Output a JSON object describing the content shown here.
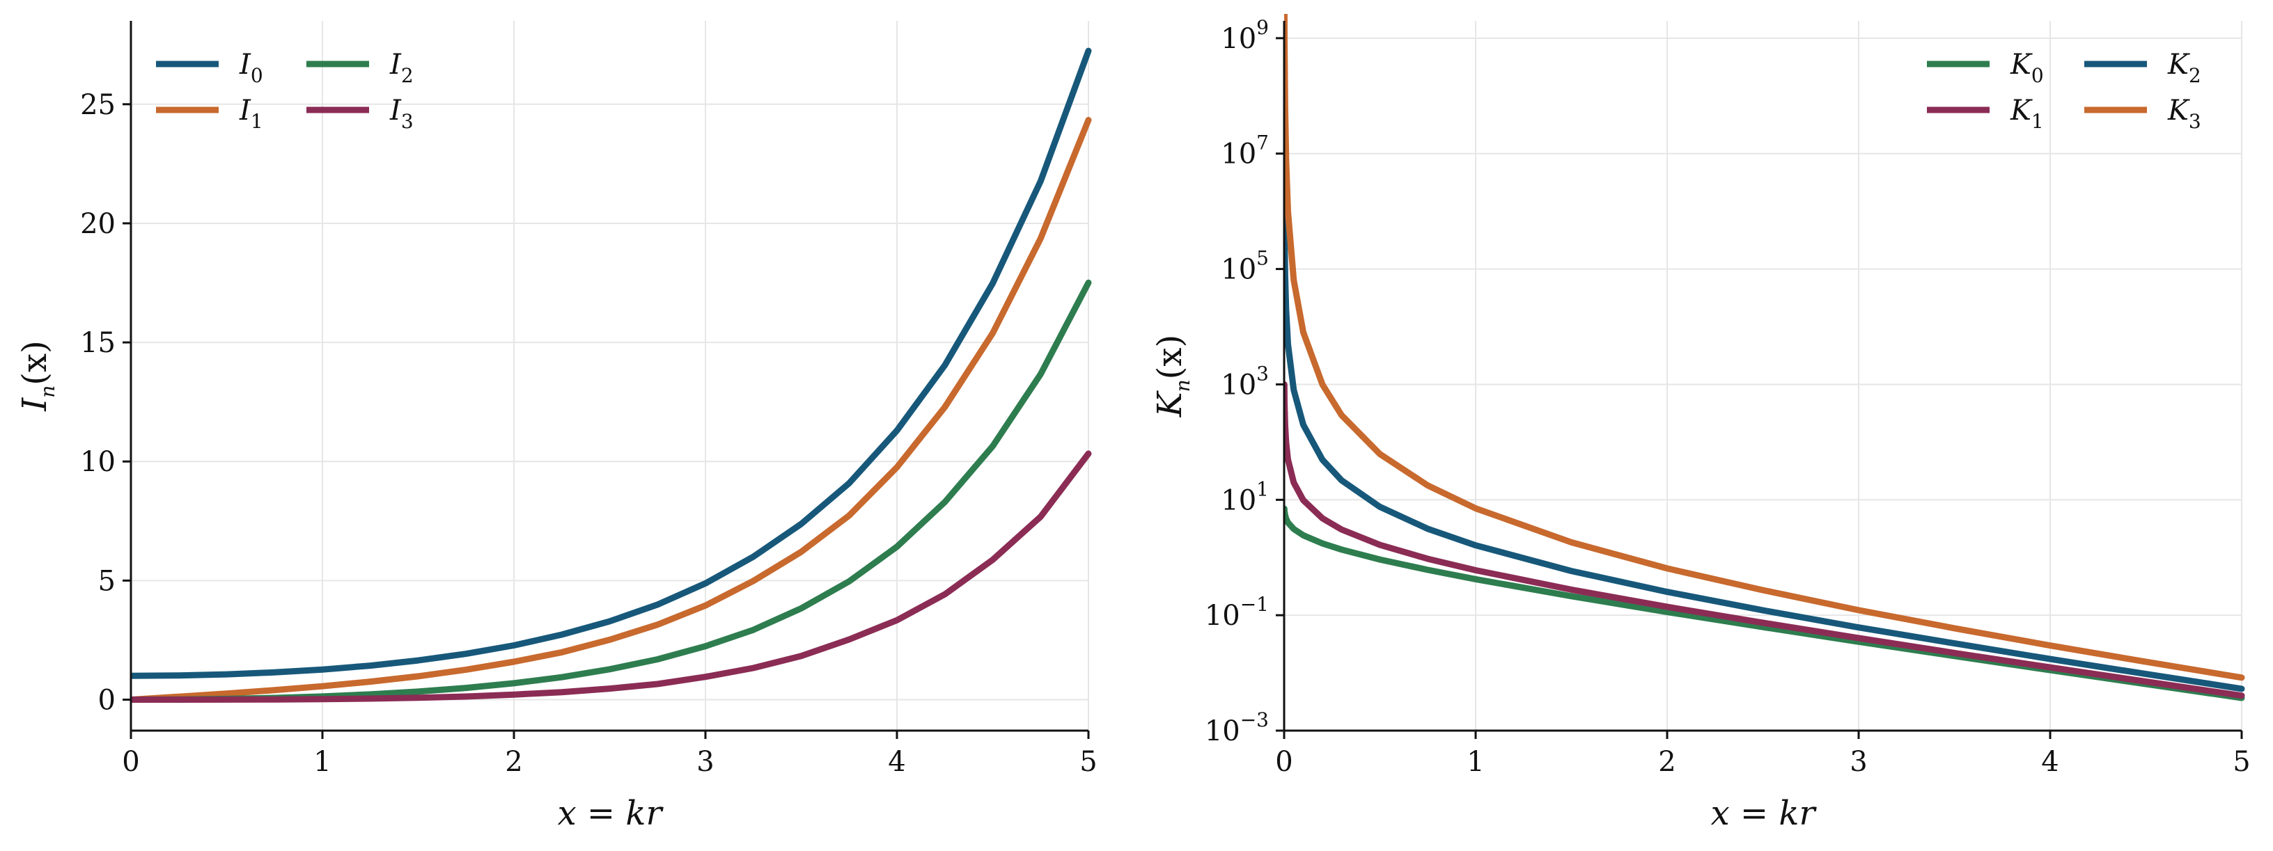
{
  "colors": {
    "blue": "#17587a",
    "orange": "#c8692e",
    "green": "#2e7d4f",
    "maroon": "#8b2c55",
    "grid": "#e6e6e6",
    "axis": "#111111"
  },
  "chart_data": [
    {
      "type": "line",
      "xlabel": "x = kr",
      "ylabel": "I_n(x)",
      "xlim": [
        0,
        5
      ],
      "ylim": [
        -1.3,
        28.5
      ],
      "x_ticks": [
        0,
        1,
        2,
        3,
        4,
        5
      ],
      "y_ticks": [
        0,
        5,
        10,
        15,
        20,
        25
      ],
      "x_tick_labels": [
        "0",
        "1",
        "2",
        "3",
        "4",
        "5"
      ],
      "y_tick_labels": [
        "0",
        "5",
        "10",
        "15",
        "20",
        "25"
      ],
      "yscale": "linear",
      "grid": true,
      "legend_position": "top-left",
      "legend_columns": 2,
      "x": [
        0,
        0.25,
        0.5,
        0.75,
        1,
        1.25,
        1.5,
        1.75,
        2,
        2.25,
        2.5,
        2.75,
        3,
        3.25,
        3.5,
        3.75,
        4,
        4.25,
        4.5,
        4.75,
        5
      ],
      "series": [
        {
          "name": "I0",
          "label_base": "I",
          "label_sub": "0",
          "color_key": "blue",
          "values": [
            1.0,
            1.016,
            1.063,
            1.146,
            1.266,
            1.43,
            1.647,
            1.924,
            2.28,
            2.732,
            3.29,
            3.99,
            4.881,
            6.0,
            7.378,
            9.085,
            11.302,
            14.041,
            17.481,
            21.77,
            27.24
          ]
        },
        {
          "name": "I1",
          "label_base": "I",
          "label_sub": "1",
          "color_key": "orange",
          "values": [
            0.0,
            0.126,
            0.258,
            0.401,
            0.565,
            0.756,
            0.982,
            1.26,
            1.591,
            1.99,
            2.517,
            3.15,
            3.953,
            4.984,
            6.206,
            7.73,
            9.759,
            12.284,
            15.389,
            19.365,
            24.336
          ]
        },
        {
          "name": "I2",
          "label_base": "I",
          "label_sub": "2",
          "color_key": "green",
          "values": [
            0.0,
            0.0078,
            0.0319,
            0.0734,
            0.1357,
            0.2213,
            0.3378,
            0.493,
            0.6889,
            0.9451,
            1.2765,
            1.694,
            2.2452,
            2.9312,
            3.832,
            4.966,
            6.4222,
            8.298,
            10.642,
            13.664,
            17.5056
          ]
        },
        {
          "name": "I3",
          "label_base": "I",
          "label_sub": "3",
          "color_key": "maroon",
          "values": [
            0.0,
            0.0003,
            0.0026,
            0.0093,
            0.0222,
            0.0436,
            0.0807,
            0.1311,
            0.2127,
            0.3146,
            0.464,
            0.658,
            0.9598,
            1.329,
            1.836,
            2.526,
            3.3373,
            4.423,
            5.871,
            7.682,
            10.3312
          ]
        }
      ]
    },
    {
      "type": "line",
      "xlabel": "x = kr",
      "ylabel": "K_n(x)",
      "xlim": [
        0,
        5
      ],
      "ylim_log10": [
        -3,
        9.3
      ],
      "yscale": "log",
      "x_ticks": [
        0,
        1,
        2,
        3,
        4,
        5
      ],
      "x_tick_labels": [
        "0",
        "1",
        "2",
        "3",
        "4",
        "5"
      ],
      "y_tick_exponents": [
        -3,
        -1,
        1,
        3,
        5,
        7,
        9
      ],
      "y_tick_labels": [
        "10^-3",
        "10^-1",
        "10^1",
        "10^3",
        "10^5",
        "10^7",
        "10^9"
      ],
      "grid": true,
      "legend_position": "top-right",
      "legend_columns": 2,
      "x": [
        0.001,
        0.002,
        0.005,
        0.01,
        0.02,
        0.05,
        0.1,
        0.2,
        0.3,
        0.5,
        0.75,
        1,
        1.5,
        2,
        2.5,
        3,
        3.5,
        4,
        4.5,
        5
      ],
      "series": [
        {
          "name": "K0",
          "label_base": "K",
          "label_sub": "0",
          "color_key": "green",
          "values": [
            7.0237,
            6.3305,
            5.4143,
            4.7212,
            4.0285,
            3.1142,
            2.4271,
            1.7527,
            1.3725,
            0.9244,
            0.6106,
            0.421,
            0.2138,
            0.1139,
            0.0623,
            0.0347,
            0.0196,
            0.01116,
            0.0064,
            0.00369
          ]
        },
        {
          "name": "K1",
          "label_base": "K",
          "label_sub": "1",
          "color_key": "maroon",
          "values": [
            1000,
            500,
            200,
            99.97,
            49.95,
            19.91,
            9.854,
            4.776,
            3.056,
            1.656,
            0.9496,
            0.6019,
            0.2774,
            0.1399,
            0.0739,
            0.0402,
            0.0222,
            0.01248,
            0.00708,
            0.00404
          ]
        },
        {
          "name": "K2",
          "label_base": "K",
          "label_sub": "2",
          "color_key": "blue",
          "values": [
            2000000,
            500000,
            80000,
            20000,
            5000,
            799.5,
            199.5,
            49.51,
            21.75,
            7.55,
            3.143,
            1.625,
            0.5836,
            0.2538,
            0.1215,
            0.0615,
            0.0325,
            0.0174,
            0.00958,
            0.00531
          ]
        },
        {
          "name": "K3",
          "label_base": "K",
          "label_sub": "3",
          "color_key": "orange",
          "values": [
            8000000000,
            1000000000,
            64000000,
            8000000,
            1000000,
            64000,
            7990,
            994.9,
            293.0,
            62.06,
            17.71,
            7.101,
            1.835,
            0.6474,
            0.2724,
            0.1222,
            0.0594,
            0.0298,
            0.0156,
            0.00829
          ]
        }
      ]
    }
  ]
}
